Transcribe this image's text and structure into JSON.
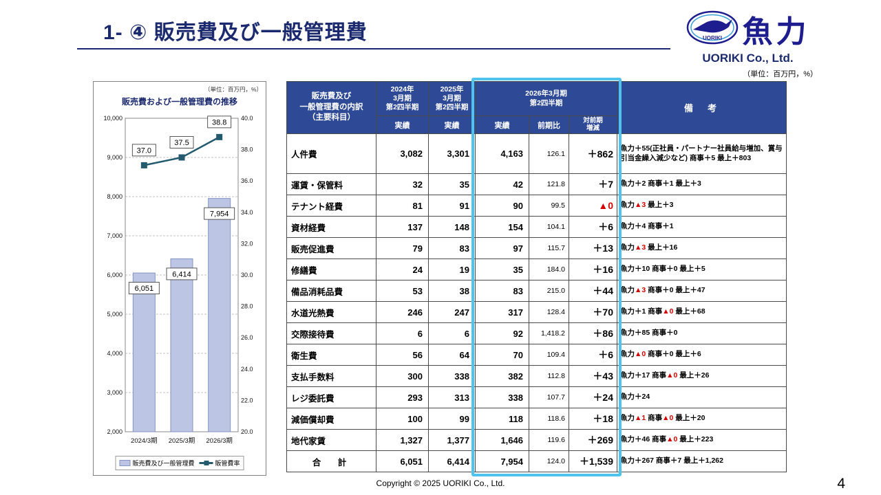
{
  "page": {
    "title": "1- ④ 販売費及び一般管理費",
    "unit_note": "（単位：百万円，%）",
    "footer": "Copyright © 2025 UORIKI Co., Ltd.",
    "page_number": "4"
  },
  "logo": {
    "company_jp": "魚力",
    "company_en": "UORIKI Co., Ltd.",
    "emblem_text": "UORIKI"
  },
  "chart_data": {
    "type": "bar+line",
    "title": "販売費および一般管理費の推移",
    "unit_note": "（単位：百万円，%）",
    "categories": [
      "2024/3期",
      "2025/3期",
      "2026/3期"
    ],
    "series": [
      {
        "name": "販売費及び一般管理費",
        "type": "bar",
        "axis": "left",
        "values": [
          6051,
          6414,
          7954
        ],
        "labels": [
          "6,051",
          "6,414",
          "7,954"
        ]
      },
      {
        "name": "販管費率",
        "type": "line",
        "axis": "right",
        "values": [
          37.0,
          37.5,
          38.8
        ],
        "labels": [
          "37.0",
          "37.5",
          "38.8"
        ]
      }
    ],
    "left_axis": {
      "min": 2000,
      "max": 10000,
      "step": 1000
    },
    "right_axis": {
      "min": 20,
      "max": 40,
      "step": 2
    },
    "grid": "dashed-horizontal",
    "legend_position": "bottom"
  },
  "table": {
    "header": {
      "category": "販売費及び\n一般管理費の内訳\n（主要科目）",
      "fy2024": "2024年\n3月期\n第2四半期",
      "fy2025": "2025年\n3月期\n第2四半期",
      "fy2026": "2026年3月期\n第2四半期",
      "actual": "実績",
      "yoy": "前期比",
      "delta": "対前期\n増減",
      "notes": "備　考"
    },
    "rows": [
      {
        "item": "人件費",
        "fy2024": "3,082",
        "fy2025": "3,301",
        "fy2026": "4,163",
        "yoy": "126.1",
        "delta": "＋862",
        "notes": "魚力＋55(正社員・パートナー社員給与増加、賞与引当金繰入減少など) 商事＋5 最上＋803"
      },
      {
        "item": "運賃・保管料",
        "fy2024": "32",
        "fy2025": "35",
        "fy2026": "42",
        "yoy": "121.8",
        "delta": "＋7",
        "notes": "魚力＋2 商事＋1 最上＋3"
      },
      {
        "item": "テナント経費",
        "fy2024": "81",
        "fy2025": "91",
        "fy2026": "90",
        "yoy": "99.5",
        "delta": "▲0",
        "notes": "魚力▲3 最上＋3"
      },
      {
        "item": "資材経費",
        "fy2024": "137",
        "fy2025": "148",
        "fy2026": "154",
        "yoy": "104.1",
        "delta": "＋6",
        "notes": "魚力＋4 商事＋1"
      },
      {
        "item": "販売促進費",
        "fy2024": "79",
        "fy2025": "83",
        "fy2026": "97",
        "yoy": "115.7",
        "delta": "＋13",
        "notes": "魚力▲3 最上＋16"
      },
      {
        "item": "修繕費",
        "fy2024": "24",
        "fy2025": "19",
        "fy2026": "35",
        "yoy": "184.0",
        "delta": "＋16",
        "notes": "魚力＋10 商事＋0 最上＋5"
      },
      {
        "item": "備品消耗品費",
        "fy2024": "53",
        "fy2025": "38",
        "fy2026": "83",
        "yoy": "215.0",
        "delta": "＋44",
        "notes": "魚力▲3 商事＋0 最上＋47"
      },
      {
        "item": "水道光熱費",
        "fy2024": "246",
        "fy2025": "247",
        "fy2026": "317",
        "yoy": "128.4",
        "delta": "＋70",
        "notes": "魚力＋1 商事▲0 最上＋68"
      },
      {
        "item": "交際接待費",
        "fy2024": "6",
        "fy2025": "6",
        "fy2026": "92",
        "yoy": "1,418.2",
        "delta": "＋86",
        "notes": "魚力＋85 商事＋0"
      },
      {
        "item": "衛生費",
        "fy2024": "56",
        "fy2025": "64",
        "fy2026": "70",
        "yoy": "109.4",
        "delta": "＋6",
        "notes": "魚力▲0 商事＋0 最上＋6"
      },
      {
        "item": "支払手数料",
        "fy2024": "300",
        "fy2025": "338",
        "fy2026": "382",
        "yoy": "112.8",
        "delta": "＋43",
        "notes": "魚力＋17 商事▲0 最上＋26"
      },
      {
        "item": "レジ委託費",
        "fy2024": "293",
        "fy2025": "313",
        "fy2026": "338",
        "yoy": "107.7",
        "delta": "＋24",
        "notes": "魚力＋24"
      },
      {
        "item": "減価償却費",
        "fy2024": "100",
        "fy2025": "99",
        "fy2026": "118",
        "yoy": "118.6",
        "delta": "＋18",
        "notes": "魚力▲1 商事▲0 最上＋20"
      },
      {
        "item": "地代家賃",
        "fy2024": "1,327",
        "fy2025": "1,377",
        "fy2026": "1,646",
        "yoy": "119.6",
        "delta": "＋269",
        "notes": "魚力＋46 商事▲0 最上＋223"
      }
    ],
    "total": {
      "item": "合　計",
      "fy2024": "6,051",
      "fy2025": "6,414",
      "fy2026": "7,954",
      "yoy": "124.0",
      "delta": "＋1,539",
      "notes": "魚力＋267 商事＋7 最上＋1,262"
    }
  }
}
